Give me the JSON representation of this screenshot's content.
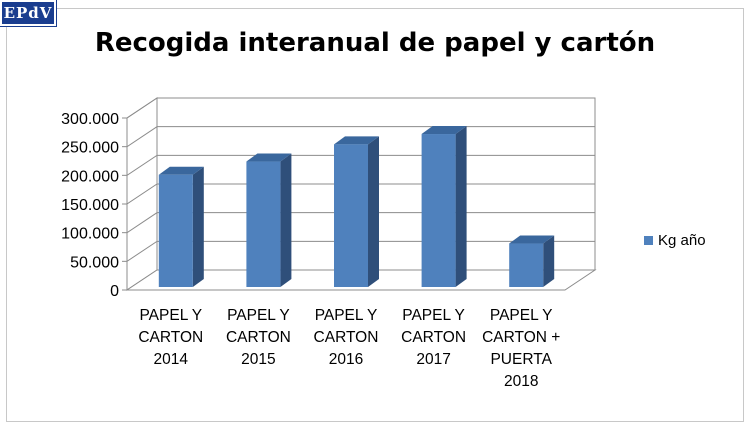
{
  "logo": "EPdV",
  "chart_data": {
    "type": "bar",
    "title": "Recogida interanual de papel y cartón",
    "categories": [
      [
        "PAPEL Y",
        "CARTON",
        "2014"
      ],
      [
        "PAPEL Y",
        "CARTON",
        "2015"
      ],
      [
        "PAPEL Y",
        "CARTON",
        "2016"
      ],
      [
        "PAPEL Y",
        "CARTON",
        "2017"
      ],
      [
        "PAPEL Y",
        "CARTON +",
        "PUERTA",
        "2018"
      ]
    ],
    "series": [
      {
        "name": "Kg año",
        "values": [
          215000,
          238000,
          268000,
          286000,
          95000
        ],
        "color": "#4f81bd"
      }
    ],
    "yticks": [
      "0",
      "50.000",
      "100.000",
      "150.000",
      "200.000",
      "250.000",
      "300.000"
    ],
    "ylim": [
      0,
      300000
    ],
    "grid": true,
    "legend_position": "right",
    "style": "3d-column"
  }
}
